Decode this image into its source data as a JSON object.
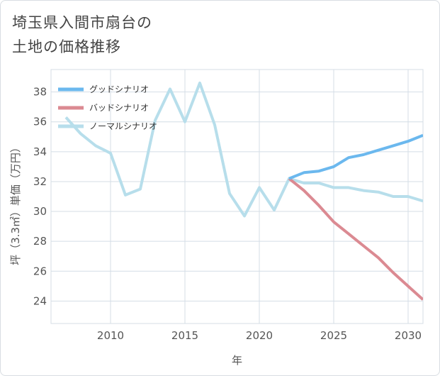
{
  "title_line1": "埼玉県入間市扇台の",
  "title_line2": "土地の価格推移",
  "chart_data": {
    "type": "line",
    "title": "埼玉県入間市扇台の土地の価格推移",
    "xlabel": "年",
    "ylabel": "坪（3.3㎡）単価（万円）",
    "xlim": [
      2006,
      2031
    ],
    "ylim": [
      22.5,
      39.5
    ],
    "xticks": [
      2010,
      2015,
      2020,
      2025,
      2030
    ],
    "yticks": [
      24,
      26,
      28,
      30,
      32,
      34,
      36,
      38
    ],
    "legend_position": "top-left",
    "series": [
      {
        "name": "グッドシナリオ",
        "color": "#6bb8ee",
        "x": [
          2022,
          2023,
          2024,
          2025,
          2026,
          2027,
          2028,
          2029,
          2030,
          2031
        ],
        "y": [
          32.2,
          32.6,
          32.7,
          33.0,
          33.6,
          33.8,
          34.1,
          34.4,
          34.7,
          35.1
        ]
      },
      {
        "name": "バッドシナリオ",
        "color": "#db8a92",
        "x": [
          2022,
          2023,
          2024,
          2025,
          2026,
          2027,
          2028,
          2029,
          2030,
          2031
        ],
        "y": [
          32.2,
          31.4,
          30.4,
          29.3,
          28.5,
          27.7,
          26.9,
          25.9,
          25.0,
          24.1
        ]
      },
      {
        "name": "ノーマルシナリオ",
        "color": "#b7deeb",
        "x": [
          2007,
          2008,
          2009,
          2010,
          2011,
          2012,
          2013,
          2014,
          2015,
          2016,
          2017,
          2018,
          2019,
          2020,
          2021,
          2022,
          2023,
          2024,
          2025,
          2026,
          2027,
          2028,
          2029,
          2030,
          2031
        ],
        "y": [
          36.3,
          35.2,
          34.4,
          33.9,
          31.1,
          31.5,
          36.1,
          38.2,
          36.0,
          38.6,
          35.8,
          31.2,
          29.7,
          31.6,
          30.1,
          32.2,
          31.9,
          31.9,
          31.6,
          31.6,
          31.4,
          31.3,
          31.0,
          31.0,
          30.7
        ]
      }
    ]
  }
}
